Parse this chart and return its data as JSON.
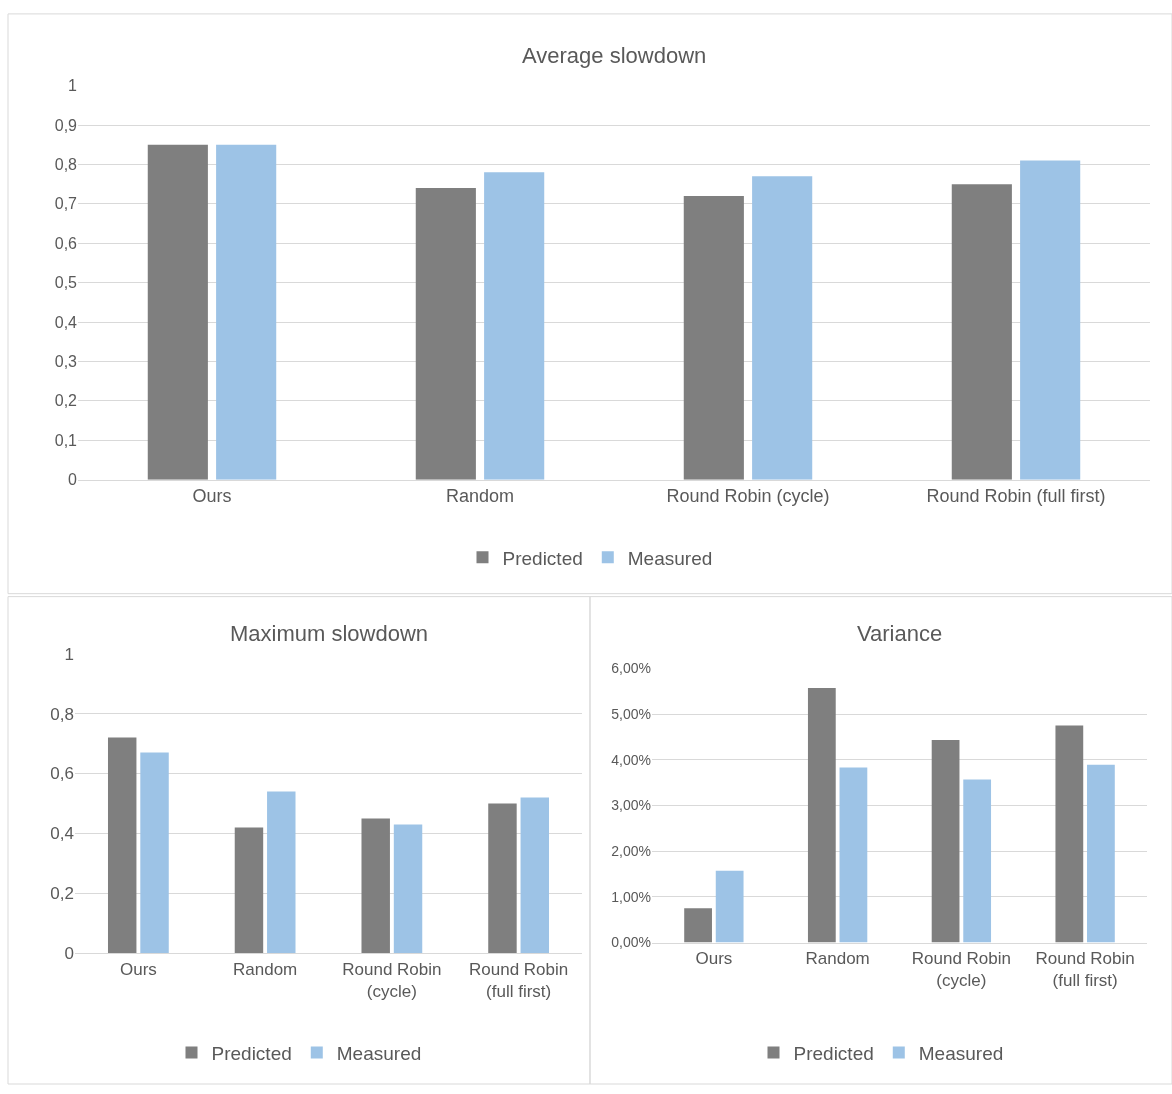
{
  "chart_data": [
    {
      "type": "bar",
      "title": "Average slowdown",
      "categories": [
        "Ours",
        "Random",
        "Round Robin (cycle)",
        "Round Robin (full first)"
      ],
      "series": [
        {
          "name": "Predicted",
          "color": "#7f7f7f",
          "values": [
            0.85,
            0.74,
            0.72,
            0.75
          ]
        },
        {
          "name": "Measured",
          "color": "#9dc3e6",
          "values": [
            0.85,
            0.78,
            0.77,
            0.81
          ]
        }
      ],
      "ylim": [
        0,
        1
      ],
      "yticks": [
        0,
        {
          "value": 0.1,
          "label": "0,1"
        },
        {
          "value": 0.2,
          "label": "0,2"
        },
        {
          "value": 0.3,
          "label": "0,3"
        },
        {
          "value": 0.4,
          "label": "0,4"
        },
        {
          "value": 0.5,
          "label": "0,5"
        },
        {
          "value": 0.6,
          "label": "0,6"
        },
        {
          "value": 0.7,
          "label": "0,7"
        },
        {
          "value": 0.8,
          "label": "0,8"
        },
        {
          "value": 0.9,
          "label": "0,9"
        },
        1
      ],
      "grid": "y",
      "legend": "bottom"
    },
    {
      "type": "bar",
      "title": "Maximum slowdown",
      "categories": [
        "Ours",
        "Random",
        "Round Robin (cycle)",
        "Round Robin (full first)"
      ],
      "series": [
        {
          "name": "Predicted",
          "color": "#7f7f7f",
          "values": [
            0.72,
            0.42,
            0.45,
            0.5
          ]
        },
        {
          "name": "Measured",
          "color": "#9dc3e6",
          "values": [
            0.67,
            0.54,
            0.43,
            0.52
          ]
        }
      ],
      "ylim": [
        0,
        1
      ],
      "yticks": [
        0,
        {
          "value": 0.2,
          "label": "0,2"
        },
        {
          "value": 0.4,
          "label": "0,4"
        },
        {
          "value": 0.6,
          "label": "0,6"
        },
        {
          "value": 0.8,
          "label": "0,8"
        },
        1
      ],
      "grid": "y",
      "legend": "bottom"
    },
    {
      "type": "bar",
      "title": "Variance",
      "categories": [
        "Ours",
        "Random",
        "Round Robin (cycle)",
        "Round Robin (full first)"
      ],
      "series": [
        {
          "name": "Predicted",
          "color": "#7f7f7f",
          "values": [
            0.75,
            5.57,
            4.43,
            4.75
          ]
        },
        {
          "name": "Measured",
          "color": "#9dc3e6",
          "values": [
            1.57,
            3.83,
            3.57,
            3.89
          ]
        }
      ],
      "ylim": [
        0,
        6
      ],
      "yticks": [
        {
          "value": 0,
          "label": "0,00%"
        },
        {
          "value": 1,
          "label": "1,00%"
        },
        {
          "value": 2,
          "label": "2,00%"
        },
        {
          "value": 3,
          "label": "3,00%"
        },
        {
          "value": 4,
          "label": "4,00%"
        },
        {
          "value": 5,
          "label": "5,00%"
        },
        {
          "value": 6,
          "label": "6,00%"
        }
      ],
      "grid": "y",
      "legend": "bottom"
    }
  ]
}
